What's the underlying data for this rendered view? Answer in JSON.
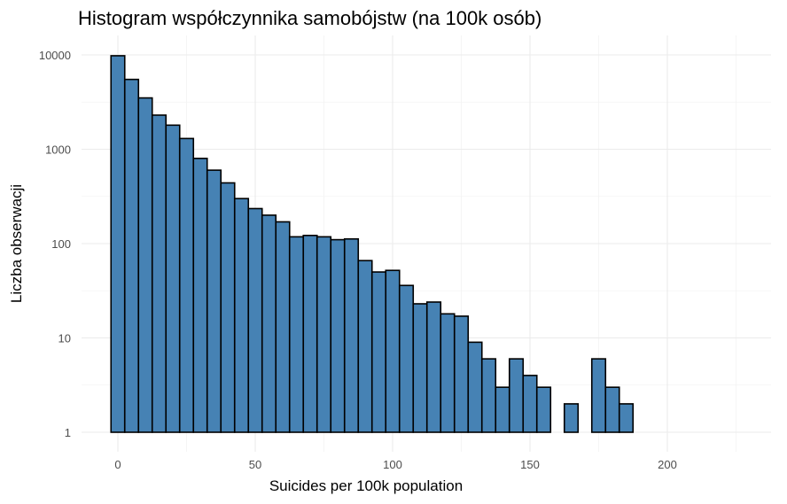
{
  "chart_data": {
    "type": "bar",
    "title": "Histogram współczynnika samobójstw (na 100k osób)",
    "xlabel": "Suicides per 100k population",
    "ylabel": "Liczba obserwacji",
    "y_scale": "log10",
    "xlim": [
      -5,
      230
    ],
    "ylim": [
      1,
      10000
    ],
    "grid": true,
    "legend": "none",
    "bar_color": "#4682b4",
    "bar_edge_color": "#000000",
    "bin_width": 5,
    "x_ticks": [
      0,
      50,
      100,
      150,
      200
    ],
    "y_ticks": [
      1,
      10,
      100,
      1000,
      10000
    ],
    "x_tick_labels": [
      "0",
      "50",
      "100",
      "150",
      "200"
    ],
    "y_tick_labels": [
      "1",
      "10",
      "100",
      "1000",
      "10000"
    ],
    "bins": [
      {
        "x_start": -2.5,
        "x_end": 2.5,
        "count": 9800
      },
      {
        "x_start": 2.5,
        "x_end": 7.5,
        "count": 5500
      },
      {
        "x_start": 7.5,
        "x_end": 12.5,
        "count": 3500
      },
      {
        "x_start": 12.5,
        "x_end": 17.5,
        "count": 2300
      },
      {
        "x_start": 17.5,
        "x_end": 22.5,
        "count": 1800
      },
      {
        "x_start": 22.5,
        "x_end": 27.5,
        "count": 1300
      },
      {
        "x_start": 27.5,
        "x_end": 32.5,
        "count": 800
      },
      {
        "x_start": 32.5,
        "x_end": 37.5,
        "count": 600
      },
      {
        "x_start": 37.5,
        "x_end": 42.5,
        "count": 440
      },
      {
        "x_start": 42.5,
        "x_end": 47.5,
        "count": 300
      },
      {
        "x_start": 47.5,
        "x_end": 52.5,
        "count": 235
      },
      {
        "x_start": 52.5,
        "x_end": 57.5,
        "count": 200
      },
      {
        "x_start": 57.5,
        "x_end": 62.5,
        "count": 170
      },
      {
        "x_start": 62.5,
        "x_end": 67.5,
        "count": 118
      },
      {
        "x_start": 67.5,
        "x_end": 72.5,
        "count": 122
      },
      {
        "x_start": 72.5,
        "x_end": 77.5,
        "count": 118
      },
      {
        "x_start": 77.5,
        "x_end": 82.5,
        "count": 110
      },
      {
        "x_start": 82.5,
        "x_end": 87.5,
        "count": 112
      },
      {
        "x_start": 87.5,
        "x_end": 92.5,
        "count": 66
      },
      {
        "x_start": 92.5,
        "x_end": 97.5,
        "count": 50
      },
      {
        "x_start": 97.5,
        "x_end": 102.5,
        "count": 52
      },
      {
        "x_start": 102.5,
        "x_end": 107.5,
        "count": 36
      },
      {
        "x_start": 107.5,
        "x_end": 112.5,
        "count": 23
      },
      {
        "x_start": 112.5,
        "x_end": 117.5,
        "count": 24
      },
      {
        "x_start": 117.5,
        "x_end": 122.5,
        "count": 18
      },
      {
        "x_start": 122.5,
        "x_end": 127.5,
        "count": 17
      },
      {
        "x_start": 127.5,
        "x_end": 132.5,
        "count": 9
      },
      {
        "x_start": 132.5,
        "x_end": 137.5,
        "count": 6
      },
      {
        "x_start": 137.5,
        "x_end": 142.5,
        "count": 3
      },
      {
        "x_start": 142.5,
        "x_end": 147.5,
        "count": 6
      },
      {
        "x_start": 147.5,
        "x_end": 152.5,
        "count": 4
      },
      {
        "x_start": 152.5,
        "x_end": 157.5,
        "count": 3
      },
      {
        "x_start": 157.5,
        "x_end": 162.5,
        "count": 1
      },
      {
        "x_start": 162.5,
        "x_end": 167.5,
        "count": 2
      },
      {
        "x_start": 167.5,
        "x_end": 172.5,
        "count": 1
      },
      {
        "x_start": 172.5,
        "x_end": 177.5,
        "count": 6
      },
      {
        "x_start": 177.5,
        "x_end": 182.5,
        "count": 3
      },
      {
        "x_start": 182.5,
        "x_end": 187.5,
        "count": 2
      },
      {
        "x_start": 202.5,
        "x_end": 207.5,
        "count": 1
      },
      {
        "x_start": 222.5,
        "x_end": 227.5,
        "count": 1
      }
    ]
  }
}
